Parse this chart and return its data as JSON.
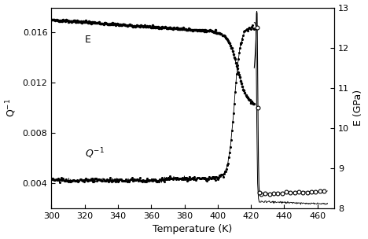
{
  "xlabel": "Temperature (K)",
  "ylabel_left": "Q$^{-1}$",
  "ylabel_right": "E (GPa)",
  "xlim": [
    300,
    470
  ],
  "ylim_left": [
    0.002,
    0.018
  ],
  "ylim_right": [
    8,
    13
  ],
  "yticks_left": [
    0.004,
    0.008,
    0.012,
    0.016
  ],
  "yticks_right": [
    8,
    9,
    10,
    11,
    12,
    13
  ],
  "xticks": [
    300,
    320,
    340,
    360,
    380,
    400,
    420,
    440,
    460
  ],
  "background_color": "#ffffff"
}
